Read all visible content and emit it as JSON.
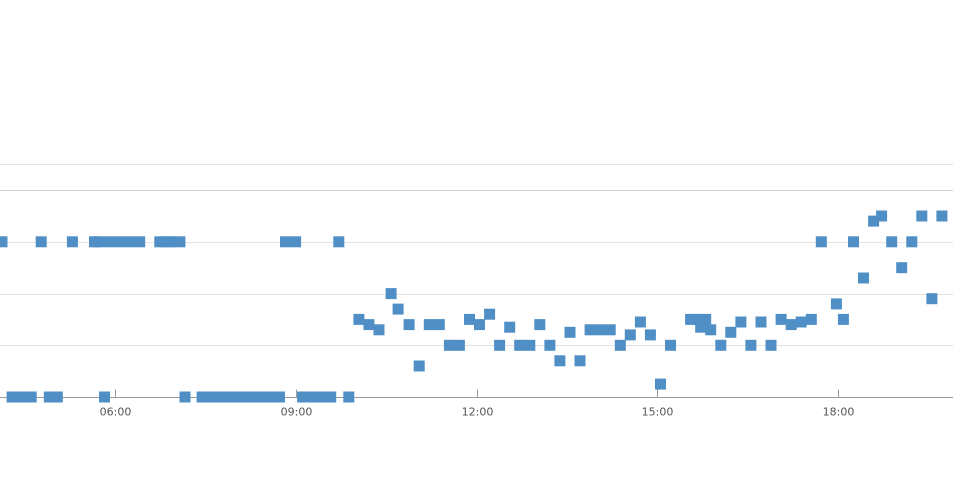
{
  "chart_data": {
    "type": "scatter",
    "title": "",
    "xlabel": "",
    "ylabel": "",
    "x_unit": "hour of day",
    "xlim": [
      4.1,
      19.9
    ],
    "ylim": [
      0,
      5.8
    ],
    "y_grid": [
      1,
      2,
      3,
      4,
      4.5
    ],
    "y_tick_labels_visible": false,
    "grid": true,
    "x_ticks": [
      {
        "value": 6,
        "label": "06:00"
      },
      {
        "value": 9,
        "label": "09:00"
      },
      {
        "value": 12,
        "label": "12:00"
      },
      {
        "value": 15,
        "label": "15:00"
      },
      {
        "value": 18,
        "label": "18:00"
      }
    ],
    "marker": {
      "shape": "square",
      "color": "#4f8fc6"
    },
    "series": [
      {
        "points": [
          {
            "t": "04:08",
            "y": 3.0
          },
          {
            "t": "04:18",
            "y": 0.0
          },
          {
            "t": "04:23",
            "y": 0.0
          },
          {
            "t": "04:28",
            "y": 0.0
          },
          {
            "t": "04:37",
            "y": 0.0
          },
          {
            "t": "04:47",
            "y": 3.0
          },
          {
            "t": "04:55",
            "y": 0.0
          },
          {
            "t": "05:03",
            "y": 0.0
          },
          {
            "t": "05:18",
            "y": 3.0
          },
          {
            "t": "05:40",
            "y": 3.0
          },
          {
            "t": "05:45",
            "y": 3.0
          },
          {
            "t": "05:50",
            "y": 0.0
          },
          {
            "t": "05:55",
            "y": 3.0
          },
          {
            "t": "06:05",
            "y": 3.0
          },
          {
            "t": "06:15",
            "y": 3.0
          },
          {
            "t": "06:25",
            "y": 3.0
          },
          {
            "t": "06:45",
            "y": 3.0
          },
          {
            "t": "06:52",
            "y": 3.0
          },
          {
            "t": "06:56",
            "y": 3.0
          },
          {
            "t": "07:05",
            "y": 3.0
          },
          {
            "t": "07:10",
            "y": 0.0
          },
          {
            "t": "07:27",
            "y": 0.0
          },
          {
            "t": "07:32",
            "y": 0.0
          },
          {
            "t": "07:38",
            "y": 0.0
          },
          {
            "t": "07:46",
            "y": 0.0
          },
          {
            "t": "07:55",
            "y": 0.0
          },
          {
            "t": "08:04",
            "y": 0.0
          },
          {
            "t": "08:14",
            "y": 0.0
          },
          {
            "t": "08:24",
            "y": 0.0
          },
          {
            "t": "08:34",
            "y": 0.0
          },
          {
            "t": "08:44",
            "y": 0.0
          },
          {
            "t": "08:50",
            "y": 3.0
          },
          {
            "t": "09:00",
            "y": 3.0
          },
          {
            "t": "09:07",
            "y": 0.0
          },
          {
            "t": "09:15",
            "y": 0.0
          },
          {
            "t": "09:25",
            "y": 0.0
          },
          {
            "t": "09:35",
            "y": 0.0
          },
          {
            "t": "09:43",
            "y": 3.0
          },
          {
            "t": "09:53",
            "y": 0.0
          },
          {
            "t": "10:03",
            "y": 1.5
          },
          {
            "t": "10:13",
            "y": 1.4
          },
          {
            "t": "10:23",
            "y": 1.3
          },
          {
            "t": "10:35",
            "y": 2.0
          },
          {
            "t": "10:42",
            "y": 1.7
          },
          {
            "t": "10:53",
            "y": 1.4
          },
          {
            "t": "11:03",
            "y": 0.6
          },
          {
            "t": "11:13",
            "y": 1.4
          },
          {
            "t": "11:23",
            "y": 1.4
          },
          {
            "t": "11:33",
            "y": 1.0
          },
          {
            "t": "11:43",
            "y": 1.0
          },
          {
            "t": "11:53",
            "y": 1.5
          },
          {
            "t": "12:03",
            "y": 1.4
          },
          {
            "t": "12:13",
            "y": 1.6
          },
          {
            "t": "12:23",
            "y": 1.0
          },
          {
            "t": "12:33",
            "y": 1.35
          },
          {
            "t": "12:43",
            "y": 1.0
          },
          {
            "t": "12:53",
            "y": 1.0
          },
          {
            "t": "13:03",
            "y": 1.4
          },
          {
            "t": "13:13",
            "y": 1.0
          },
          {
            "t": "13:23",
            "y": 0.7
          },
          {
            "t": "13:33",
            "y": 1.25
          },
          {
            "t": "13:43",
            "y": 0.7
          },
          {
            "t": "13:53",
            "y": 1.3
          },
          {
            "t": "14:03",
            "y": 1.3
          },
          {
            "t": "14:13",
            "y": 1.3
          },
          {
            "t": "14:23",
            "y": 1.0
          },
          {
            "t": "14:33",
            "y": 1.2
          },
          {
            "t": "14:43",
            "y": 1.45
          },
          {
            "t": "14:53",
            "y": 1.2
          },
          {
            "t": "15:03",
            "y": 0.25
          },
          {
            "t": "15:13",
            "y": 1.0
          },
          {
            "t": "15:33",
            "y": 1.5
          },
          {
            "t": "15:40",
            "y": 1.5
          },
          {
            "t": "15:43",
            "y": 1.35
          },
          {
            "t": "15:48",
            "y": 1.5
          },
          {
            "t": "15:53",
            "y": 1.3
          },
          {
            "t": "16:03",
            "y": 1.0
          },
          {
            "t": "16:13",
            "y": 1.25
          },
          {
            "t": "16:23",
            "y": 1.45
          },
          {
            "t": "16:33",
            "y": 1.0
          },
          {
            "t": "16:43",
            "y": 1.45
          },
          {
            "t": "16:53",
            "y": 1.0
          },
          {
            "t": "17:03",
            "y": 1.5
          },
          {
            "t": "17:13",
            "y": 1.4
          },
          {
            "t": "17:23",
            "y": 1.45
          },
          {
            "t": "17:33",
            "y": 1.5
          },
          {
            "t": "17:43",
            "y": 3.0
          },
          {
            "t": "17:58",
            "y": 1.8
          },
          {
            "t": "18:05",
            "y": 1.5
          },
          {
            "t": "18:15",
            "y": 3.0
          },
          {
            "t": "18:25",
            "y": 2.3
          },
          {
            "t": "18:35",
            "y": 3.4
          },
          {
            "t": "18:43",
            "y": 3.5
          },
          {
            "t": "18:53",
            "y": 3.0
          },
          {
            "t": "19:03",
            "y": 2.5
          },
          {
            "t": "19:13",
            "y": 3.0
          },
          {
            "t": "19:23",
            "y": 3.5
          },
          {
            "t": "19:33",
            "y": 1.9
          },
          {
            "t": "19:43",
            "y": 3.5
          }
        ]
      }
    ]
  }
}
